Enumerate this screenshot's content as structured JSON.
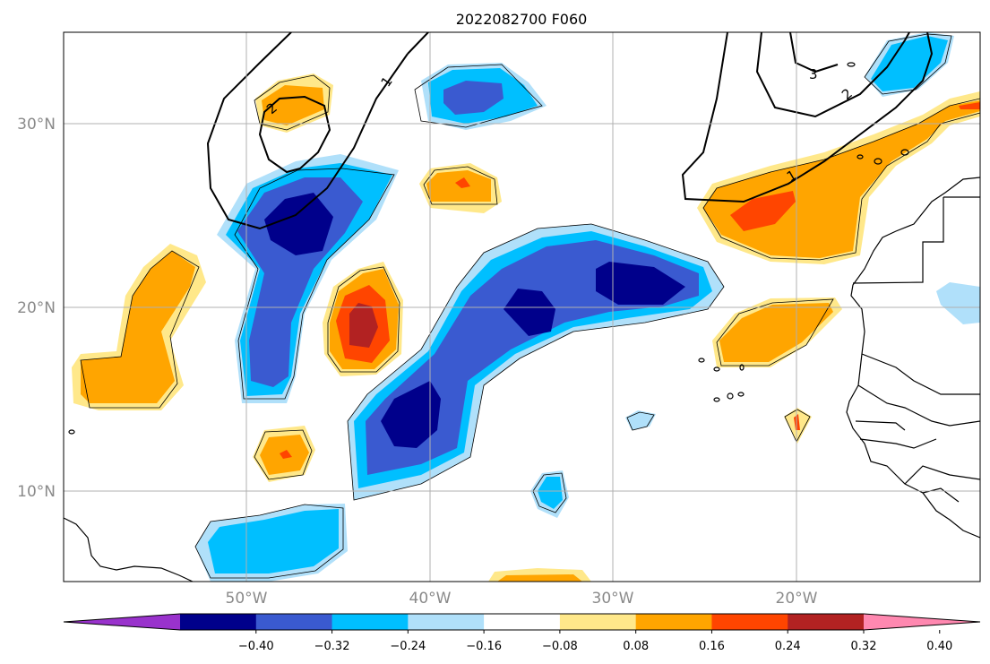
{
  "title": "2022082700 F060",
  "lat_labels": [
    "30°N",
    "20°N",
    "10°N"
  ],
  "lon_labels": [
    "50°W",
    "40°W",
    "30°W",
    "20°W"
  ],
  "colorbar": {
    "ticks": [
      "−0.40",
      "−0.32",
      "−0.24",
      "−0.16",
      "−0.08",
      "0.08",
      "0.16",
      "0.24",
      "0.32",
      "0.40"
    ],
    "colors": [
      "#9932cc",
      "#00008b",
      "#3a5ad0",
      "#00bfff",
      "#b0e0fa",
      "#ffffff",
      "#ffe88a",
      "#ffa500",
      "#ff4500",
      "#b22222",
      "#ff88b0"
    ]
  },
  "contour_labels": [
    "1",
    "2",
    "1",
    "2",
    "3"
  ],
  "colors": {
    "grid": "#b0b0b0",
    "coast": "#000000",
    "contour": "#000000"
  }
}
